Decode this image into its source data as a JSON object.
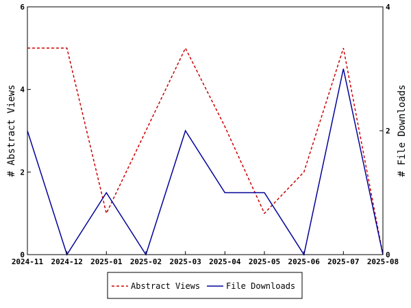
{
  "chart_data": {
    "type": "line",
    "x": [
      "2024-11",
      "2024-12",
      "2025-01",
      "2025-02",
      "2025-03",
      "2025-04",
      "2025-05",
      "2025-06",
      "2025-07",
      "2025-08"
    ],
    "ylabel_left": "# Abstract Views",
    "ylabel_right": "# File Downloads",
    "ylim_left": [
      0,
      6
    ],
    "ylim_right": [
      0,
      4
    ],
    "yticks_left": [
      "0",
      "2",
      "4",
      "6"
    ],
    "yticks_right": [
      "0",
      "2",
      "4"
    ],
    "grid": false,
    "legend_position": "bottom-center",
    "series": [
      {
        "name": "Abstract Views",
        "axis": "left",
        "color": "#cc0000",
        "style": "dashed",
        "values": [
          5,
          5,
          1,
          3,
          5,
          3.1,
          1,
          2,
          5,
          0
        ]
      },
      {
        "name": "File Downloads",
        "axis": "right",
        "color": "#000099",
        "style": "solid",
        "values": [
          2,
          0,
          1,
          0,
          2,
          1,
          1,
          0,
          3,
          0
        ]
      }
    ]
  }
}
